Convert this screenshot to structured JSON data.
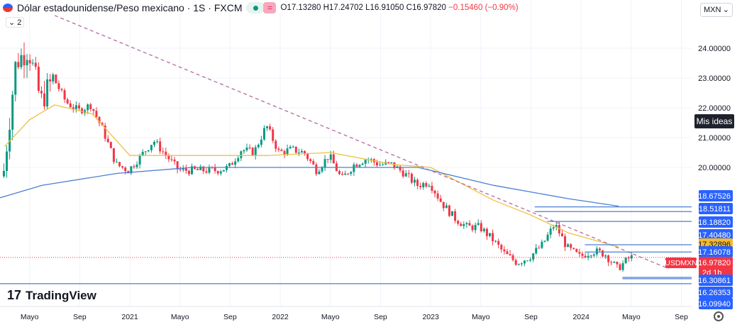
{
  "header": {
    "title": "Dólar estadounidense/Peso mexicano · 1S · FXCM",
    "open": "O17.13280",
    "high": "H17.24702",
    "low": "L16.91050",
    "close": "C16.97820",
    "change": "−0.15460 (−0.90%)",
    "collapse": "2",
    "eq_icon": "="
  },
  "currency_select": "MXN",
  "my_ideas": "Mis ideas",
  "logo": "TradingView",
  "symbol_label": "USDMXN",
  "countdown": "2d 1h",
  "colors": {
    "up": "#089981",
    "down": "#f23645",
    "ma_fast": "#f0c040",
    "ma_slow": "#4a7fd4",
    "levels": "#2962ff",
    "trend": "#b36b9e",
    "price": "#f23645",
    "highlight": "#f5b82e"
  },
  "chart_data": {
    "type": "candlestick",
    "interval": "weekly",
    "y_ticks": [
      "24.00000",
      "23.00000",
      "22.00000",
      "21.00000",
      "20.00000"
    ],
    "x_ticks": [
      {
        "label": "Mayo",
        "date": "2020-05"
      },
      {
        "label": "Sep",
        "date": "2020-09"
      },
      {
        "label": "2021",
        "date": "2021-01"
      },
      {
        "label": "Mayo",
        "date": "2021-05"
      },
      {
        "label": "Sep",
        "date": "2021-09"
      },
      {
        "label": "2022",
        "date": "2022-01"
      },
      {
        "label": "Mayo",
        "date": "2022-05"
      },
      {
        "label": "Sep",
        "date": "2022-09"
      },
      {
        "label": "2023",
        "date": "2023-01"
      },
      {
        "label": "Mayo",
        "date": "2023-05"
      },
      {
        "label": "Sep",
        "date": "2023-09"
      },
      {
        "label": "2024",
        "date": "2024-01"
      },
      {
        "label": "Mayo",
        "date": "2024-05"
      },
      {
        "label": "Sep",
        "date": "2024-09"
      }
    ],
    "monthly_close": [
      [
        "2020-02",
        19.7
      ],
      [
        "2020-03",
        23.5
      ],
      [
        "2020-04",
        24.0
      ],
      [
        "2020-05",
        22.2
      ],
      [
        "2020-06",
        23.0
      ],
      [
        "2020-07",
        22.2
      ],
      [
        "2020-08",
        21.9
      ],
      [
        "2020-09",
        22.1
      ],
      [
        "2020-10",
        21.2
      ],
      [
        "2020-11",
        20.1
      ],
      [
        "2020-12",
        19.9
      ],
      [
        "2021-01",
        20.4
      ],
      [
        "2021-02",
        20.9
      ],
      [
        "2021-03",
        20.4
      ],
      [
        "2021-04",
        19.9
      ],
      [
        "2021-05",
        19.9
      ],
      [
        "2021-06",
        19.9
      ],
      [
        "2021-07",
        19.9
      ],
      [
        "2021-08",
        20.0
      ],
      [
        "2021-09",
        20.6
      ],
      [
        "2021-10",
        20.5
      ],
      [
        "2021-11",
        21.4
      ],
      [
        "2021-12",
        20.5
      ],
      [
        "2022-01",
        20.6
      ],
      [
        "2022-02",
        20.5
      ],
      [
        "2022-03",
        19.9
      ],
      [
        "2022-04",
        20.4
      ],
      [
        "2022-05",
        19.6
      ],
      [
        "2022-06",
        20.1
      ],
      [
        "2022-07",
        20.3
      ],
      [
        "2022-08",
        20.1
      ],
      [
        "2022-09",
        20.1
      ],
      [
        "2022-10",
        19.8
      ],
      [
        "2022-11",
        19.4
      ],
      [
        "2022-12",
        19.5
      ],
      [
        "2023-01",
        18.8
      ],
      [
        "2023-02",
        18.3
      ],
      [
        "2023-03",
        18.0
      ],
      [
        "2023-04",
        18.0
      ],
      [
        "2023-05",
        17.6
      ],
      [
        "2023-06",
        17.1
      ],
      [
        "2023-07",
        16.8
      ],
      [
        "2023-08",
        17.0
      ],
      [
        "2023-09",
        17.4
      ],
      [
        "2023-10",
        18.1
      ],
      [
        "2023-11",
        17.3
      ],
      [
        "2023-12",
        17.0
      ],
      [
        "2024-01",
        17.2
      ],
      [
        "2024-02",
        17.1
      ],
      [
        "2024-03",
        16.6
      ],
      [
        "2024-04",
        16.98
      ]
    ],
    "ma_fast": [
      [
        "2020-03",
        20.7
      ],
      [
        "2020-05",
        21.6
      ],
      [
        "2020-07",
        22.1
      ],
      [
        "2020-10",
        21.8
      ],
      [
        "2021-01",
        20.4
      ],
      [
        "2021-06",
        20.4
      ],
      [
        "2021-12",
        20.4
      ],
      [
        "2022-05",
        20.5
      ],
      [
        "2022-10",
        20.1
      ],
      [
        "2023-01",
        20.0
      ],
      [
        "2023-06",
        18.9
      ],
      [
        "2023-09",
        18.4
      ],
      [
        "2023-12",
        17.8
      ],
      [
        "2024-04",
        17.33
      ]
    ],
    "ma_slow": [
      [
        "2020-02",
        18.9
      ],
      [
        "2020-06",
        19.4
      ],
      [
        "2020-12",
        19.8
      ],
      [
        "2021-06",
        20.0
      ],
      [
        "2021-12",
        20.0
      ],
      [
        "2022-06",
        20.0
      ],
      [
        "2022-12",
        20.0
      ],
      [
        "2023-06",
        19.4
      ],
      [
        "2023-12",
        18.95
      ],
      [
        "2024-04",
        18.7
      ]
    ],
    "trendline": [
      [
        "2020-07",
        25.1
      ],
      [
        "2024-08",
        16.6
      ]
    ],
    "levels": [
      {
        "value": "18.67526",
        "price": 18.675,
        "from": "2023-09"
      },
      {
        "value": "18.51811",
        "price": 18.518,
        "from": "2023-09"
      },
      {
        "value": "18.18820",
        "price": 18.188,
        "from": "2023-10"
      },
      {
        "value": "17.40480",
        "price": 17.405,
        "from": "2024-01"
      },
      {
        "value": "17.32896",
        "price": 17.329,
        "kind": "ma"
      },
      {
        "value": "17.16078",
        "price": 17.161,
        "from": "2024-01"
      },
      {
        "value": "16.97820",
        "price": 16.978,
        "kind": "last"
      },
      {
        "value": "16.30861",
        "price": 16.309,
        "from": "2024-04"
      },
      {
        "value": "16.26353",
        "price": 16.264,
        "from": "2024-04"
      },
      {
        "value": "16.09940",
        "price": 16.099,
        "from": "2020-02"
      }
    ]
  }
}
